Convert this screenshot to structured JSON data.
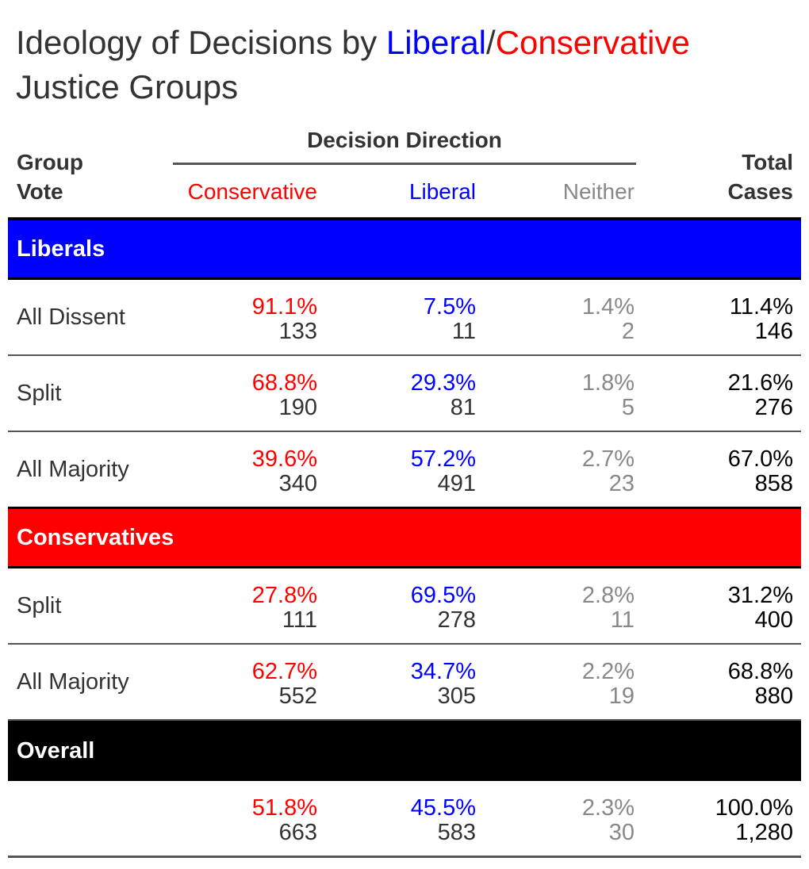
{
  "chart_data": {
    "type": "table",
    "title": {
      "prefix": "Ideology of Decisions by ",
      "liberal_word": "Liberal",
      "slash": "/",
      "conservative_word": "Conservative",
      "suffix": "Justice Groups"
    },
    "header": {
      "group_vote": [
        "Group",
        "Vote"
      ],
      "spanner": "Decision Direction",
      "columns": [
        "Conservative",
        "Liberal",
        "Neither"
      ],
      "total_cases": [
        "Total",
        "Cases"
      ]
    },
    "groups": [
      {
        "name": "Liberals",
        "rows": [
          {
            "label": "All Dissent",
            "conservative": {
              "pct": "91.1%",
              "n": "133"
            },
            "liberal": {
              "pct": "7.5%",
              "n": "11"
            },
            "neither": {
              "pct": "1.4%",
              "n": "2"
            },
            "total": {
              "pct": "11.4%",
              "n": "146"
            }
          },
          {
            "label": "Split",
            "conservative": {
              "pct": "68.8%",
              "n": "190"
            },
            "liberal": {
              "pct": "29.3%",
              "n": "81"
            },
            "neither": {
              "pct": "1.8%",
              "n": "5"
            },
            "total": {
              "pct": "21.6%",
              "n": "276"
            }
          },
          {
            "label": "All Majority",
            "conservative": {
              "pct": "39.6%",
              "n": "340"
            },
            "liberal": {
              "pct": "57.2%",
              "n": "491"
            },
            "neither": {
              "pct": "2.7%",
              "n": "23"
            },
            "total": {
              "pct": "67.0%",
              "n": "858"
            }
          }
        ]
      },
      {
        "name": "Conservatives",
        "rows": [
          {
            "label": "Split",
            "conservative": {
              "pct": "27.8%",
              "n": "111"
            },
            "liberal": {
              "pct": "69.5%",
              "n": "278"
            },
            "neither": {
              "pct": "2.8%",
              "n": "11"
            },
            "total": {
              "pct": "31.2%",
              "n": "400"
            }
          },
          {
            "label": "All Majority",
            "conservative": {
              "pct": "62.7%",
              "n": "552"
            },
            "liberal": {
              "pct": "34.7%",
              "n": "305"
            },
            "neither": {
              "pct": "2.2%",
              "n": "19"
            },
            "total": {
              "pct": "68.8%",
              "n": "880"
            }
          }
        ]
      },
      {
        "name": "Overall",
        "rows": [
          {
            "label": "",
            "conservative": {
              "pct": "51.8%",
              "n": "663"
            },
            "liberal": {
              "pct": "45.5%",
              "n": "583"
            },
            "neither": {
              "pct": "2.3%",
              "n": "30"
            },
            "total": {
              "pct": "100.0%",
              "n": "1,280"
            }
          }
        ]
      }
    ],
    "colors": {
      "liberal": "#0000ff",
      "conservative": "#ff0000",
      "neither": "#888888",
      "overall": "#000000"
    }
  }
}
